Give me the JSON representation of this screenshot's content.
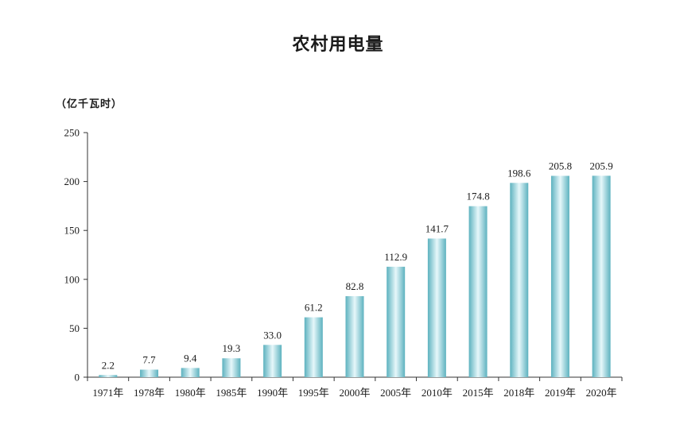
{
  "chart_data": {
    "type": "bar",
    "title": "农村用电量",
    "ylabel": "（亿千瓦时）",
    "xlabel": "",
    "categories": [
      "1971年",
      "1978年",
      "1980年",
      "1985年",
      "1990年",
      "1995年",
      "2000年",
      "2005年",
      "2010年",
      "2015年",
      "2018年",
      "2019年",
      "2020年"
    ],
    "values": [
      2.2,
      7.7,
      9.4,
      19.3,
      33.0,
      61.2,
      82.8,
      112.9,
      141.7,
      174.8,
      198.6,
      205.8,
      205.9
    ],
    "value_labels": [
      "2.2",
      "7.7",
      "9.4",
      "19.3",
      "33.0",
      "61.2",
      "82.8",
      "112.9",
      "141.7",
      "174.8",
      "198.6",
      "205.8",
      "205.9"
    ],
    "ylim": [
      0,
      250
    ],
    "yticks": [
      "0",
      "50",
      "100",
      "150",
      "200",
      "250"
    ],
    "ytick_values": [
      0,
      50,
      100,
      150,
      200,
      250
    ],
    "grid": false,
    "legend": "none",
    "colors": {
      "bar_edge": "#6fbcc8",
      "bar_center": "#e3f5f8",
      "axis": "#333333",
      "text": "#1a1a1a"
    }
  }
}
